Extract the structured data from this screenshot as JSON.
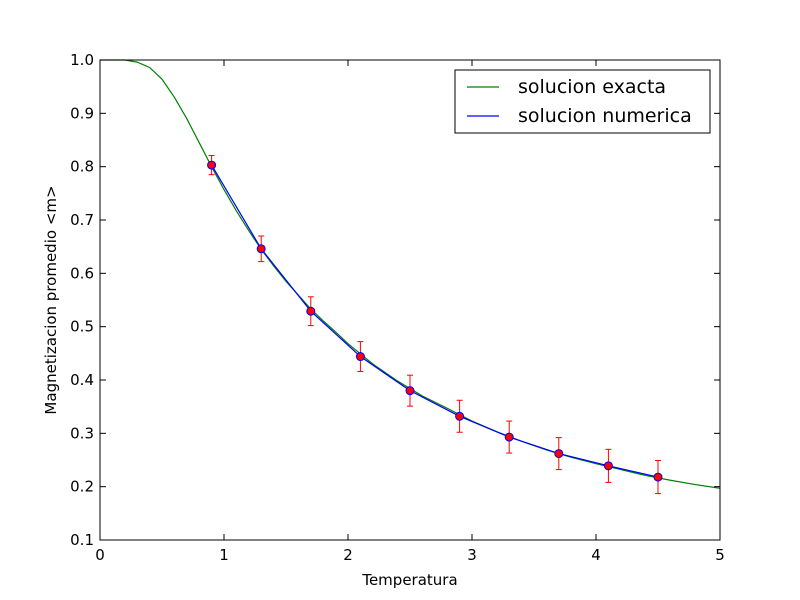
{
  "chart_data": {
    "type": "line",
    "title": "",
    "xlabel": "Temperatura",
    "ylabel": "Magnetizacion promedio <m>",
    "xlim": [
      0,
      5
    ],
    "ylim": [
      0.1,
      1.0
    ],
    "x_ticks": [
      0,
      1,
      2,
      3,
      4,
      5
    ],
    "y_ticks": [
      0.1,
      0.2,
      0.3,
      0.4,
      0.5,
      0.6,
      0.7,
      0.8,
      0.9,
      1.0
    ],
    "x_tick_labels": [
      "0",
      "1",
      "2",
      "3",
      "4",
      "5"
    ],
    "y_tick_labels": [
      "0.1",
      "0.2",
      "0.3",
      "0.4",
      "0.5",
      "0.6",
      "0.7",
      "0.8",
      "0.9",
      "1.0"
    ],
    "grid": false,
    "legend_position": "top-right",
    "series": [
      {
        "name": "solucion exacta",
        "color": "#008000",
        "x": [
          0.0,
          0.1,
          0.2,
          0.3,
          0.4,
          0.5,
          0.6,
          0.7,
          0.8,
          0.9,
          1.0,
          1.1,
          1.2,
          1.3,
          1.4,
          1.5,
          1.6,
          1.7,
          1.8,
          1.9,
          2.0,
          2.2,
          2.4,
          2.6,
          2.8,
          3.0,
          3.2,
          3.4,
          3.6,
          3.8,
          4.0,
          4.2,
          4.4,
          4.6,
          4.8,
          5.0
        ],
        "y": [
          1.0,
          1.0,
          1.0,
          0.996,
          0.986,
          0.964,
          0.93,
          0.89,
          0.845,
          0.8,
          0.757,
          0.717,
          0.68,
          0.645,
          0.614,
          0.585,
          0.559,
          0.533,
          0.511,
          0.49,
          0.468,
          0.43,
          0.398,
          0.37,
          0.347,
          0.323,
          0.303,
          0.285,
          0.269,
          0.255,
          0.243,
          0.232,
          0.221,
          0.212,
          0.204,
          0.197
        ]
      },
      {
        "name": "solucion numerica",
        "color": "#0000ff",
        "marker_color": "#ff0000",
        "errorbar_color": "#ff0000",
        "x": [
          0.9,
          1.3,
          1.7,
          2.1,
          2.5,
          2.9,
          3.3,
          3.7,
          4.1,
          4.5
        ],
        "y": [
          0.803,
          0.646,
          0.529,
          0.444,
          0.38,
          0.332,
          0.293,
          0.262,
          0.239,
          0.218
        ],
        "yerr": [
          0.018,
          0.024,
          0.027,
          0.028,
          0.029,
          0.03,
          0.03,
          0.03,
          0.031,
          0.031
        ]
      }
    ]
  }
}
